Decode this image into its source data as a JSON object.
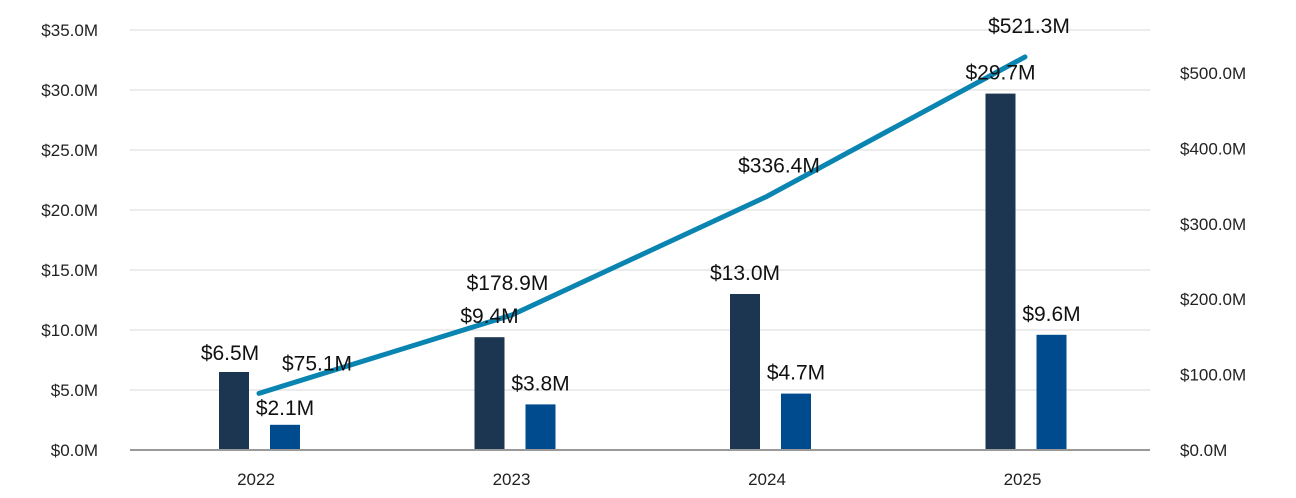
{
  "chart_data": {
    "type": "bar",
    "categories": [
      "2022",
      "2023",
      "2024",
      "2025"
    ],
    "series": [
      {
        "type": "bar",
        "axis": "left",
        "color": "#1c3651",
        "values": [
          6.5,
          9.4,
          13.0,
          29.7
        ],
        "labels": [
          "$6.5M",
          "$9.4M",
          "$13.0M",
          "$29.7M"
        ]
      },
      {
        "type": "bar",
        "axis": "left",
        "color": "#004b8d",
        "values": [
          2.1,
          3.8,
          4.7,
          9.6
        ],
        "labels": [
          "$2.1M",
          "$3.8M",
          "$4.7M",
          "$9.6M"
        ]
      },
      {
        "type": "line",
        "axis": "right",
        "color": "#0a84b0",
        "values": [
          75.1,
          178.9,
          336.4,
          521.3
        ],
        "labels": [
          "$75.1M",
          "$178.9M",
          "$336.4M",
          "$521.3M"
        ]
      }
    ],
    "left_axis": {
      "ylim": [
        0,
        35
      ],
      "ticks": [
        0,
        5,
        10,
        15,
        20,
        25,
        30,
        35
      ],
      "tick_labels": [
        "$0.0M",
        "$5.0M",
        "$10.0M",
        "$15.0M",
        "$20.0M",
        "$25.0M",
        "$30.0M",
        "$35.0M"
      ]
    },
    "right_axis": {
      "ylim": [
        0,
        550
      ],
      "ticks": [
        0,
        100,
        200,
        300,
        400,
        500
      ],
      "tick_labels": [
        "$0.0M",
        "$100.0M",
        "$200.0M",
        "$300.0M",
        "$400.0M",
        "$500.0M"
      ]
    },
    "grid": true,
    "legend": "none",
    "title": "",
    "xlabel": "",
    "ylabel": ""
  }
}
